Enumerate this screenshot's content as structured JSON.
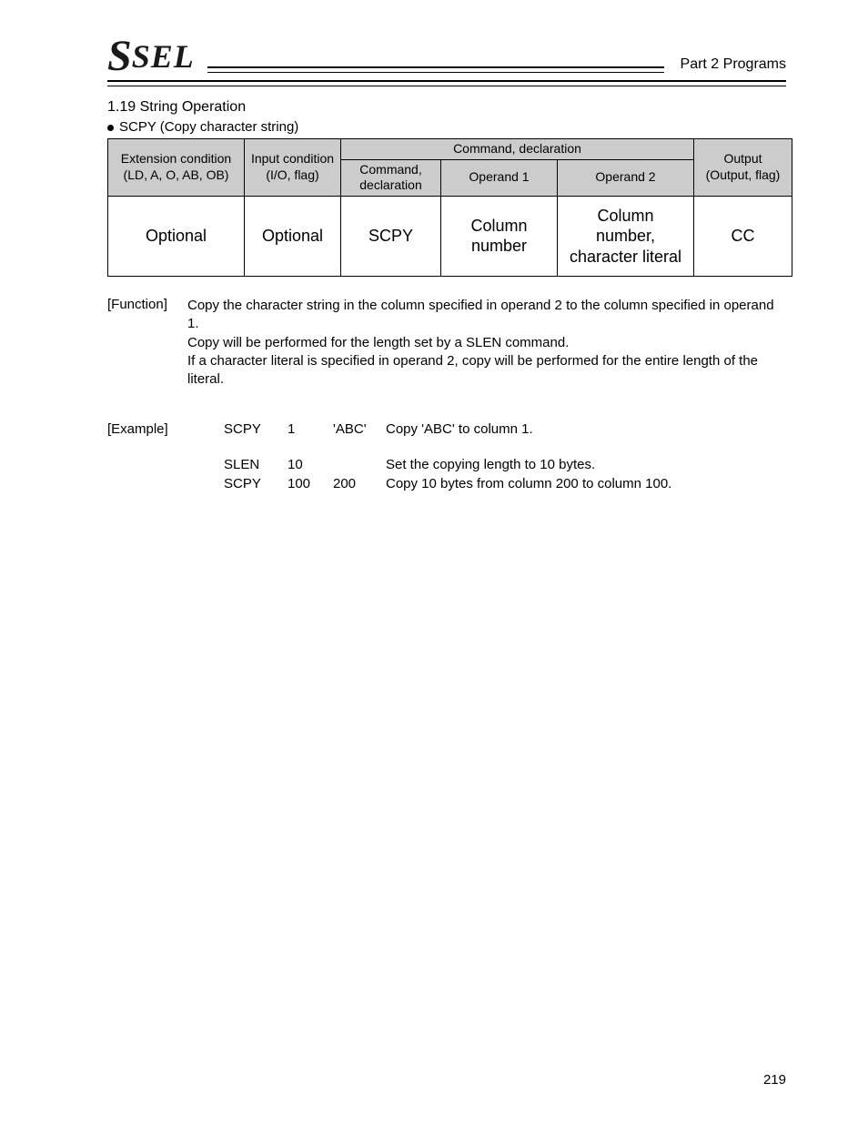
{
  "header": {
    "logo_big": "S",
    "logo_rest": "SEL",
    "part_label": "Part 2 Programs"
  },
  "section": {
    "number_and_title": "1.19  String Operation",
    "bullet_text": "SCPY (Copy character string)"
  },
  "table": {
    "head": {
      "ext_cond_line1": "Extension condition",
      "ext_cond_line2": "(LD, A, O, AB, OB)",
      "input_cond_line1": "Input condition",
      "input_cond_line2": "(I/O, flag)",
      "cmd_decl_group": "Command, declaration",
      "cmd_decl_line1": "Command,",
      "cmd_decl_line2": "declaration",
      "operand1": "Operand 1",
      "operand2": "Operand 2",
      "output_line1": "Output",
      "output_line2": "(Output, flag)"
    },
    "row": {
      "ext_cond": "Optional",
      "input_cond": "Optional",
      "cmd": "SCPY",
      "op1_line1": "Column",
      "op1_line2": "number",
      "op2_line1": "Column",
      "op2_line2": "number,",
      "op2_line3": "character literal",
      "output": "CC"
    },
    "col_widths": {
      "ext": "150px",
      "input": "106px",
      "cmd": "110px",
      "op1": "128px",
      "op2": "150px",
      "out": "108px"
    }
  },
  "function": {
    "label": "[Function]",
    "line1": "Copy the character string in the column specified in operand 2 to the column specified in operand 1.",
    "line2": "Copy will be performed for the length set by a SLEN command.",
    "line3": "If a character literal is specified in operand 2, copy will be performed for the entire length of the literal."
  },
  "example": {
    "label": "[Example]",
    "rows": [
      {
        "cmd": "SCPY",
        "op1": "1",
        "op2": "'ABC'",
        "desc": "Copy 'ABC' to column 1."
      },
      {
        "cmd": "SLEN",
        "op1": "10",
        "op2": "",
        "desc": "Set the copying length to 10 bytes."
      },
      {
        "cmd": "SCPY",
        "op1": "100",
        "op2": "200",
        "desc": "Copy 10 bytes from column 200 to column 100."
      }
    ]
  },
  "page_number": "219"
}
